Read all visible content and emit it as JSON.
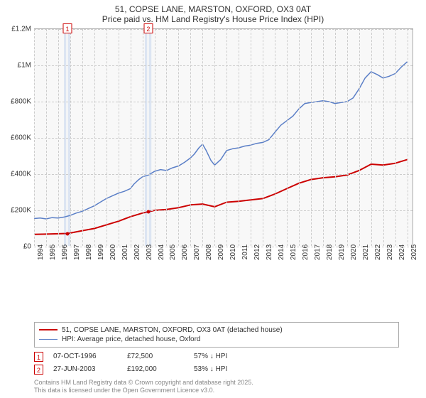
{
  "title": {
    "line1": "51, COPSE LANE, MARSTON, OXFORD, OX3 0AT",
    "line2": "Price paid vs. HM Land Registry's House Price Index (HPI)"
  },
  "chart": {
    "type": "line",
    "background_color": "#f8f8f8",
    "grid_color": "#cccccc",
    "axis_color": "#666666",
    "x": {
      "min": 1994,
      "max": 2025.5,
      "ticks": [
        1994,
        1995,
        1996,
        1997,
        1998,
        1999,
        2000,
        2001,
        2002,
        2003,
        2004,
        2005,
        2006,
        2007,
        2008,
        2009,
        2010,
        2011,
        2012,
        2013,
        2014,
        2015,
        2016,
        2017,
        2018,
        2019,
        2020,
        2021,
        2022,
        2023,
        2024,
        2025
      ],
      "label_fontsize": 10
    },
    "y": {
      "min": 0,
      "max": 1200000,
      "ticks": [
        0,
        200000,
        400000,
        600000,
        800000,
        1000000,
        1200000
      ],
      "tick_labels": [
        "£0",
        "£200K",
        "£400K",
        "£600K",
        "£800K",
        "£1M",
        "£1.2M"
      ],
      "label_fontsize": 10
    },
    "shaded_ranges": [
      {
        "x0": 1996.5,
        "x1": 1997.0
      },
      {
        "x0": 2003.2,
        "x1": 2003.8
      }
    ],
    "series": [
      {
        "name": "price_paid",
        "label": "51, COPSE LANE, MARSTON, OXFORD, OX3 0AT (detached house)",
        "color": "#cc0000",
        "line_width": 2,
        "points": [
          [
            1994,
            68000
          ],
          [
            1995,
            69000
          ],
          [
            1996,
            71000
          ],
          [
            1996.77,
            72500
          ],
          [
            1997,
            75000
          ],
          [
            1998,
            88000
          ],
          [
            1999,
            100000
          ],
          [
            2000,
            120000
          ],
          [
            2001,
            140000
          ],
          [
            2002,
            165000
          ],
          [
            2003,
            185000
          ],
          [
            2003.49,
            192000
          ],
          [
            2004,
            200000
          ],
          [
            2005,
            205000
          ],
          [
            2006,
            215000
          ],
          [
            2007,
            230000
          ],
          [
            2008,
            235000
          ],
          [
            2009,
            220000
          ],
          [
            2010,
            245000
          ],
          [
            2011,
            250000
          ],
          [
            2012,
            258000
          ],
          [
            2013,
            265000
          ],
          [
            2014,
            290000
          ],
          [
            2015,
            320000
          ],
          [
            2016,
            350000
          ],
          [
            2017,
            370000
          ],
          [
            2018,
            380000
          ],
          [
            2019,
            385000
          ],
          [
            2020,
            395000
          ],
          [
            2021,
            420000
          ],
          [
            2022,
            455000
          ],
          [
            2023,
            450000
          ],
          [
            2024,
            460000
          ],
          [
            2025,
            480000
          ]
        ]
      },
      {
        "name": "hpi",
        "label": "HPI: Average price, detached house, Oxford",
        "color": "#5b7fc7",
        "line_width": 1.5,
        "points": [
          [
            1994,
            155000
          ],
          [
            1994.5,
            158000
          ],
          [
            1995,
            153000
          ],
          [
            1995.5,
            160000
          ],
          [
            1996,
            158000
          ],
          [
            1996.5,
            163000
          ],
          [
            1997,
            172000
          ],
          [
            1997.5,
            185000
          ],
          [
            1998,
            195000
          ],
          [
            1998.5,
            210000
          ],
          [
            1999,
            225000
          ],
          [
            1999.5,
            245000
          ],
          [
            2000,
            265000
          ],
          [
            2000.5,
            280000
          ],
          [
            2001,
            295000
          ],
          [
            2001.5,
            305000
          ],
          [
            2002,
            320000
          ],
          [
            2002.3,
            345000
          ],
          [
            2002.7,
            370000
          ],
          [
            2003,
            385000
          ],
          [
            2003.5,
            395000
          ],
          [
            2004,
            415000
          ],
          [
            2004.5,
            425000
          ],
          [
            2005,
            420000
          ],
          [
            2005.5,
            435000
          ],
          [
            2006,
            445000
          ],
          [
            2006.5,
            465000
          ],
          [
            2007,
            490000
          ],
          [
            2007.3,
            510000
          ],
          [
            2007.7,
            545000
          ],
          [
            2008,
            565000
          ],
          [
            2008.3,
            530000
          ],
          [
            2008.7,
            475000
          ],
          [
            2009,
            450000
          ],
          [
            2009.5,
            480000
          ],
          [
            2010,
            530000
          ],
          [
            2010.5,
            540000
          ],
          [
            2011,
            545000
          ],
          [
            2011.5,
            555000
          ],
          [
            2012,
            560000
          ],
          [
            2012.5,
            570000
          ],
          [
            2013,
            575000
          ],
          [
            2013.5,
            590000
          ],
          [
            2014,
            630000
          ],
          [
            2014.5,
            670000
          ],
          [
            2015,
            695000
          ],
          [
            2015.5,
            720000
          ],
          [
            2016,
            760000
          ],
          [
            2016.5,
            790000
          ],
          [
            2017,
            795000
          ],
          [
            2017.5,
            800000
          ],
          [
            2018,
            805000
          ],
          [
            2018.5,
            800000
          ],
          [
            2019,
            790000
          ],
          [
            2019.5,
            795000
          ],
          [
            2020,
            800000
          ],
          [
            2020.5,
            820000
          ],
          [
            2021,
            870000
          ],
          [
            2021.5,
            930000
          ],
          [
            2022,
            965000
          ],
          [
            2022.5,
            950000
          ],
          [
            2023,
            930000
          ],
          [
            2023.5,
            940000
          ],
          [
            2024,
            955000
          ],
          [
            2024.5,
            990000
          ],
          [
            2025,
            1020000
          ]
        ]
      }
    ],
    "sale_markers": [
      {
        "idx": "1",
        "x": 1996.77,
        "y": 72500,
        "color": "#cc0000"
      },
      {
        "idx": "2",
        "x": 2003.49,
        "y": 192000,
        "color": "#cc0000"
      }
    ]
  },
  "legend": {
    "items": [
      {
        "color": "#cc0000",
        "width": 2,
        "label": "51, COPSE LANE, MARSTON, OXFORD, OX3 0AT (detached house)"
      },
      {
        "color": "#5b7fc7",
        "width": 1.5,
        "label": "HPI: Average price, detached house, Oxford"
      }
    ]
  },
  "sales_table": {
    "rows": [
      {
        "idx": "1",
        "date": "07-OCT-1996",
        "price": "£72,500",
        "diff": "57% ↓ HPI"
      },
      {
        "idx": "2",
        "date": "27-JUN-2003",
        "price": "£192,000",
        "diff": "53% ↓ HPI"
      }
    ]
  },
  "footer": {
    "line1": "Contains HM Land Registry data © Crown copyright and database right 2025.",
    "line2": "This data is licensed under the Open Government Licence v3.0."
  }
}
